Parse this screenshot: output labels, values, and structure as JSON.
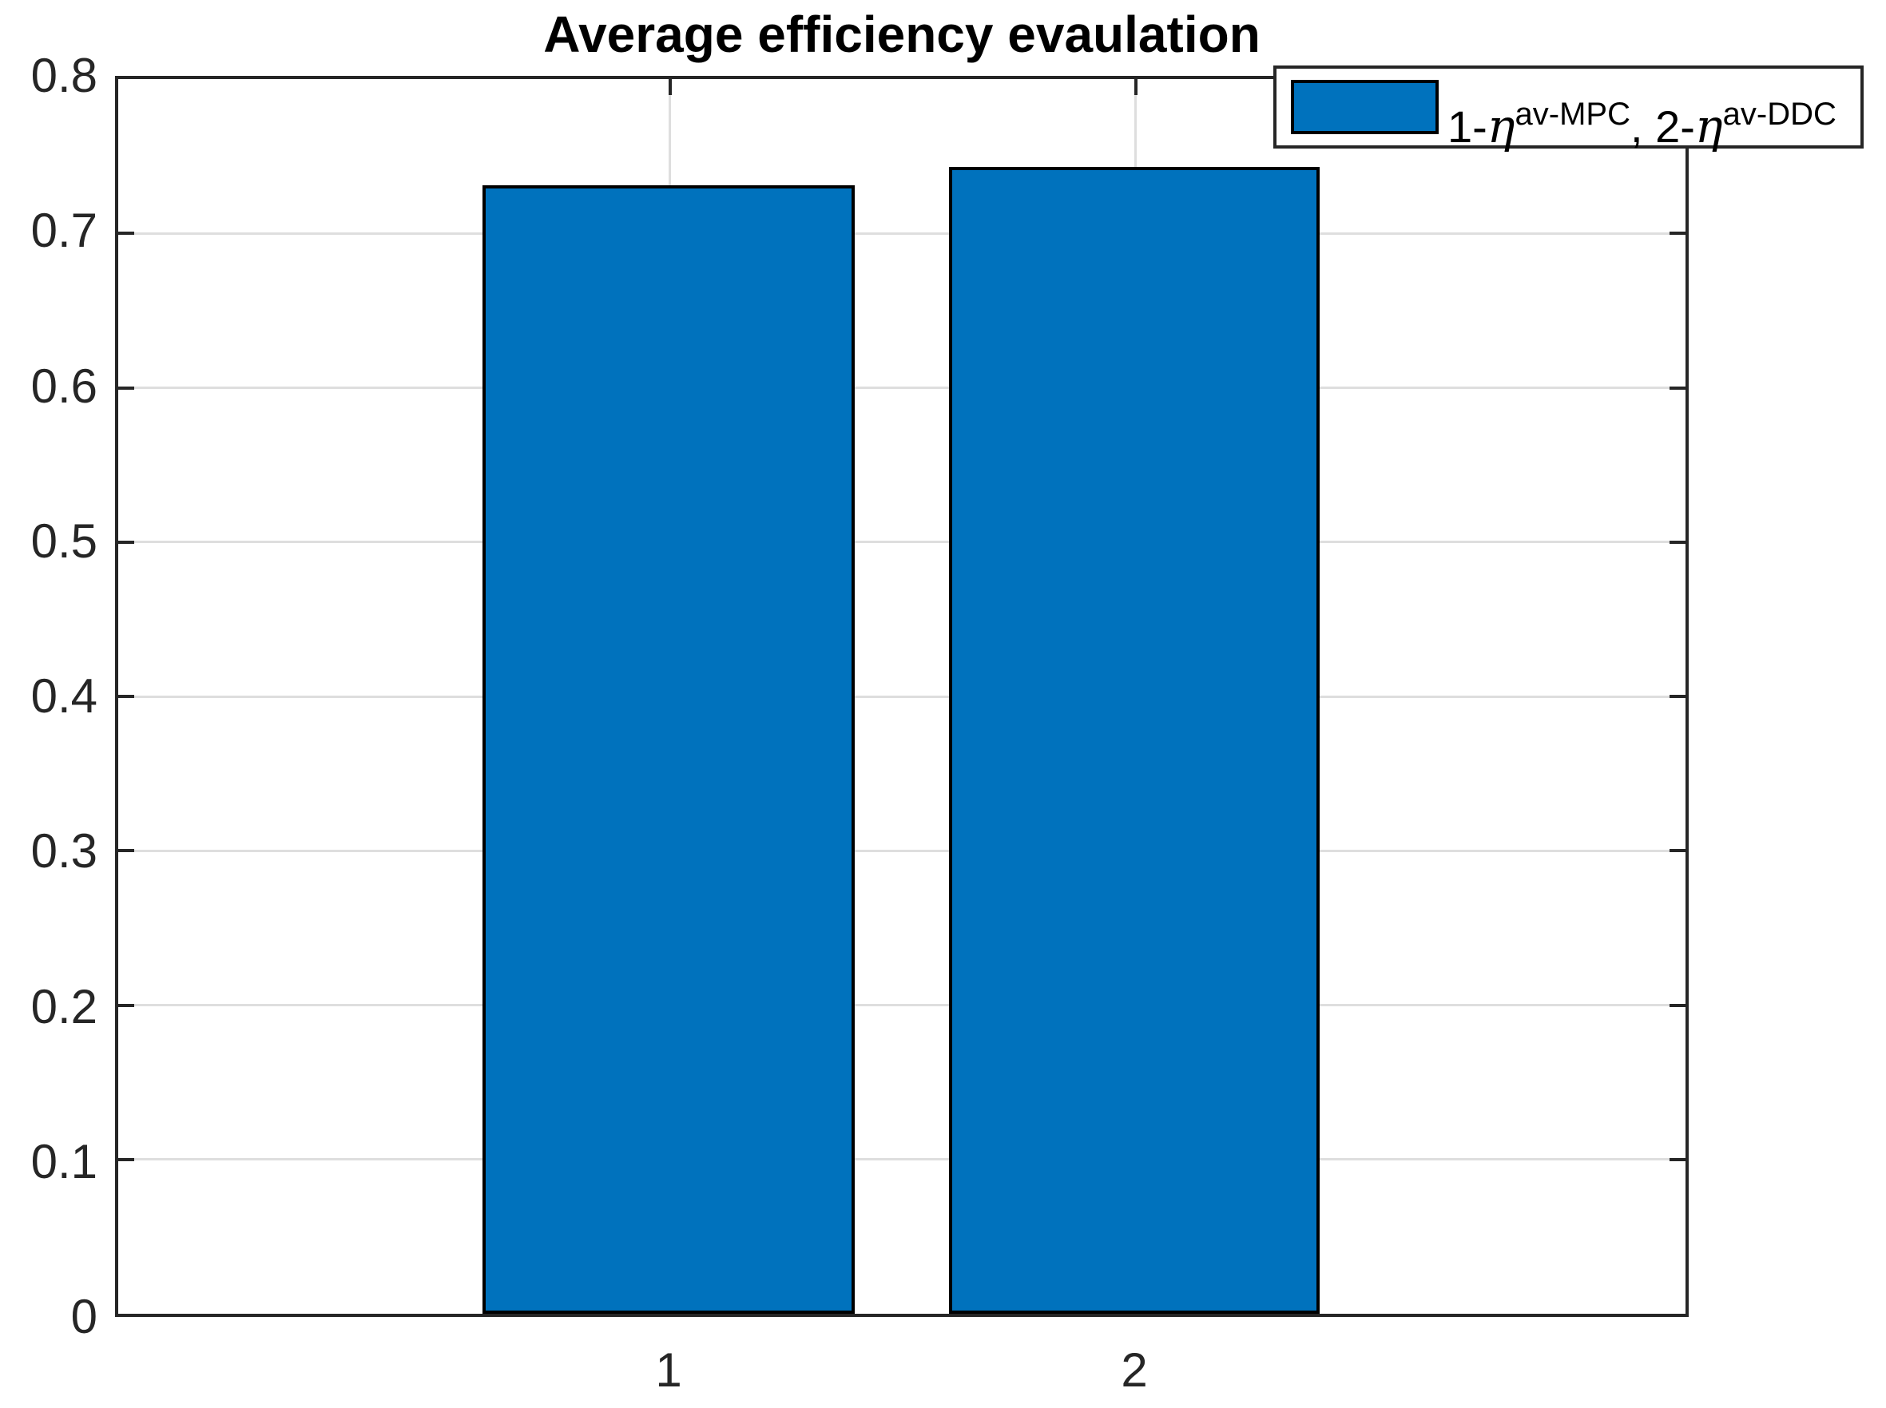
{
  "figure": {
    "title": "Average efficiency evaulation",
    "background": "#ffffff"
  },
  "chart_data": {
    "type": "bar",
    "categories": [
      "1",
      "2"
    ],
    "values": [
      0.731,
      0.743
    ],
    "title": "Average efficiency evaulation",
    "xlabel": "",
    "ylabel": "",
    "ylim": [
      0,
      0.8
    ],
    "yticks": [
      0,
      0.1,
      0.2,
      0.3,
      0.4,
      0.5,
      0.6,
      0.7,
      0.8
    ],
    "grid": true,
    "legend_position": "northeast",
    "legend_label": "1-η^av-MPC, 2-η^av-DDC",
    "bar_color": "#0072BD",
    "bar_edge_color": "#000000"
  },
  "axes": {
    "y_tick_labels": [
      "0.8",
      "0.7",
      "0.6",
      "0.5",
      "0.4",
      "0.3",
      "0.2",
      "0.1",
      "0"
    ],
    "x_tick_labels": [
      "1",
      "2"
    ]
  },
  "legend": {
    "pre1": "1-",
    "eta1": "η",
    "sup1": "av-MPC",
    "pre2": ", 2-",
    "eta2": "η",
    "sup2": "av-DDC"
  },
  "colors": {
    "bar": "#0072BD",
    "axis": "#262626",
    "grid": "#dedede"
  }
}
